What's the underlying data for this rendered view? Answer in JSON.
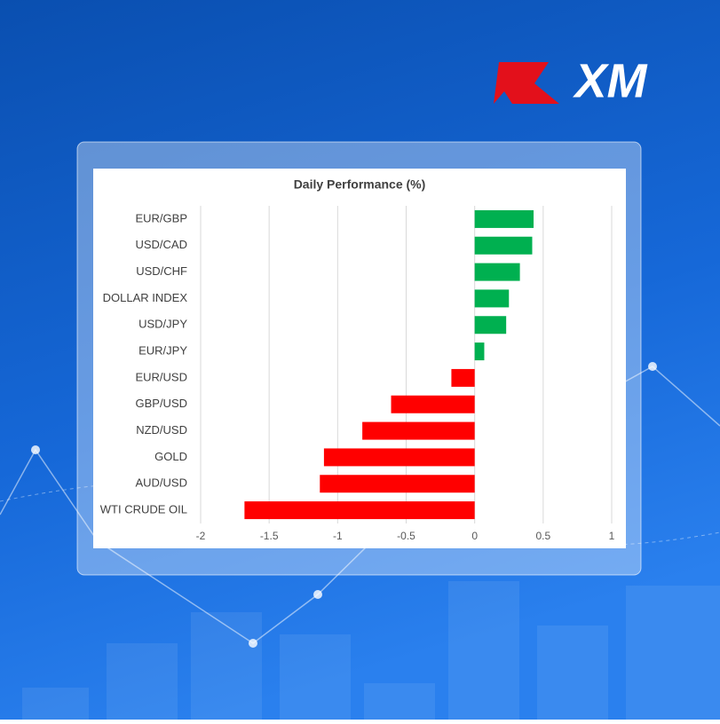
{
  "logo": "XM",
  "chart_data": {
    "type": "bar",
    "orientation": "horizontal",
    "title": "Daily Performance  (%)",
    "categories": [
      "EUR/GBP",
      "USD/CAD",
      "USD/CHF",
      "DOLLAR INDEX",
      "USD/JPY",
      "EUR/JPY",
      "EUR/USD",
      "GBP/USD",
      "NZD/USD",
      "GOLD",
      "AUD/USD",
      "WTI CRUDE OIL"
    ],
    "values": [
      0.43,
      0.42,
      0.33,
      0.25,
      0.23,
      0.07,
      -0.17,
      -0.61,
      -0.82,
      -1.1,
      -1.13,
      -1.68
    ],
    "positive_color": "#00b050",
    "negative_color": "#ff0000",
    "xlim": [
      -2,
      1
    ],
    "xticks": [
      -2,
      -1.5,
      -1,
      -0.5,
      0,
      0.5,
      1
    ],
    "grid": true
  }
}
